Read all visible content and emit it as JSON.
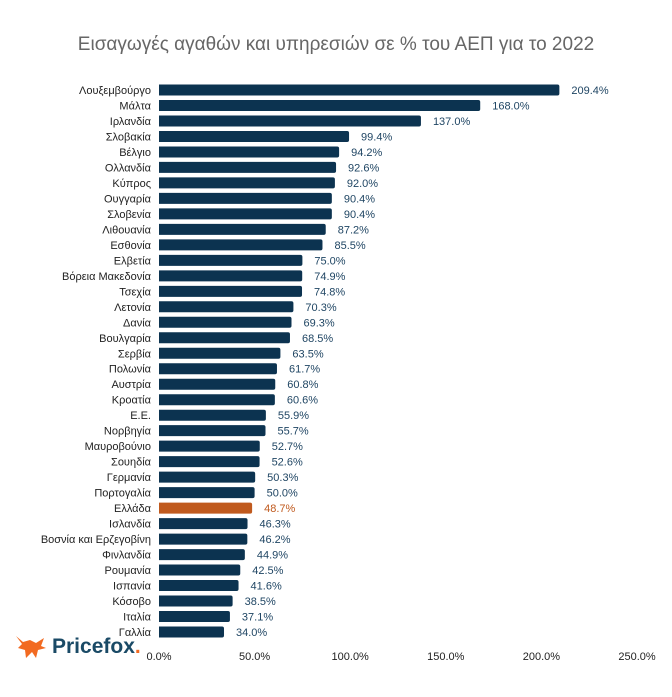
{
  "chart_data": {
    "type": "bar",
    "orientation": "horizontal",
    "title": "Εισαγωγές αγαθών και υπηρεσιών σε % του ΑΕΠ για το 2022",
    "categories": [
      "Λουξεμβούργο",
      "Μάλτα",
      "Ιρλανδία",
      "Σλοβακία",
      "Βέλγιο",
      "Ολλανδία",
      "Κύπρος",
      "Ουγγαρία",
      "Σλοβενία",
      "Λιθουανία",
      "Εσθονία",
      "Ελβετία",
      "Βόρεια Μακεδονία",
      "Τσεχία",
      "Λετονία",
      "Δανία",
      "Βουλγαρία",
      "Σερβία",
      "Πολωνία",
      "Αυστρία",
      "Κροατία",
      "Ε.Ε.",
      "Νορβηγία",
      "Μαυροβούνιο",
      "Σουηδία",
      "Γερμανία",
      "Πορτογαλία",
      "Ελλάδα",
      "Ισλανδία",
      "Βοσνία και Ερζεγοβίνη",
      "Φινλανδία",
      "Ρουμανία",
      "Ισπανία",
      "Κόσοβο",
      "Ιταλία",
      "Γαλλία"
    ],
    "values": [
      209.4,
      168.0,
      137.0,
      99.4,
      94.2,
      92.6,
      92.0,
      90.4,
      90.4,
      87.2,
      85.5,
      75.0,
      74.9,
      74.8,
      70.3,
      69.3,
      68.5,
      63.5,
      61.7,
      60.8,
      60.6,
      55.9,
      55.7,
      52.7,
      52.6,
      50.3,
      50.0,
      48.7,
      46.3,
      46.2,
      44.9,
      42.5,
      41.6,
      38.5,
      37.1,
      34.0
    ],
    "value_format": "percent_1dp",
    "xlim": [
      0,
      250
    ],
    "xticks": [
      "0.0%",
      "50.0%",
      "100.0%",
      "150.0%",
      "200.0%",
      "250.0%"
    ],
    "xtick_values": [
      0,
      50,
      100,
      150,
      200,
      250
    ],
    "grid": false,
    "highlight_category": "Ελλάδα",
    "colors": {
      "bar": "#0c3350",
      "highlight": "#c05a1e",
      "label": "#1f4563"
    }
  },
  "logo": {
    "text": "Pricefox",
    "icon": "fox-icon",
    "color": "#f26a21"
  }
}
